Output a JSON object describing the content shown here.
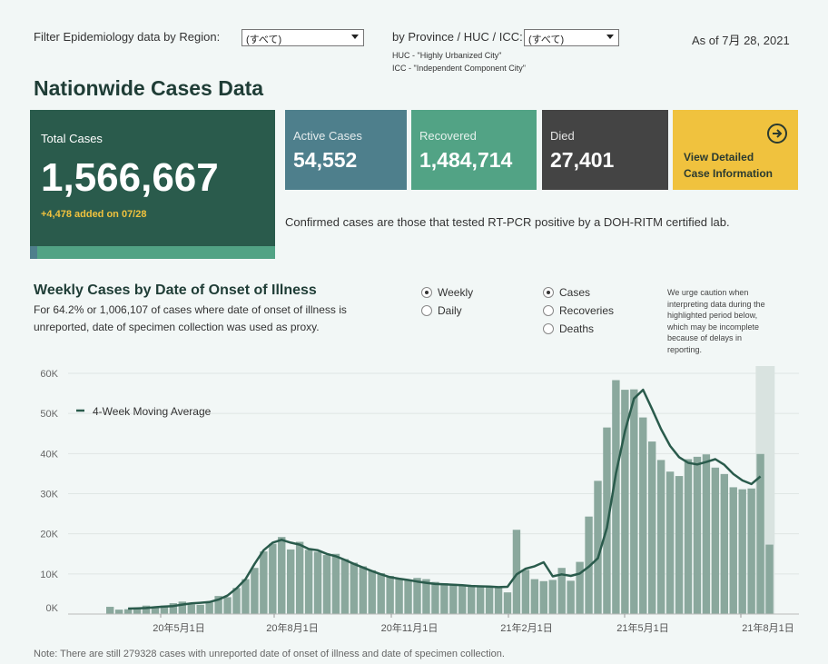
{
  "filters": {
    "region_label": "Filter Epidemiology data by Region:",
    "region_value": "(すべて)",
    "province_label": "by Province / HUC / ICC:",
    "province_value": "(すべて)",
    "huc_note": "HUC - \"Highly Urbanized City\"",
    "icc_note": "ICC - \"Independent Component City\"",
    "as_of": "As of 7月 28, 2021"
  },
  "title": "Nationwide Cases Data",
  "cards": {
    "total": {
      "label": "Total Cases",
      "value": "1,566,667",
      "added": "+4,478 added on 07/28",
      "color": "#2a5b4c"
    },
    "active": {
      "label": "Active Cases",
      "value": "54,552",
      "color": "#4e7f8c"
    },
    "recovered": {
      "label": "Recovered",
      "value": "1,484,714",
      "color": "#52a385"
    },
    "died": {
      "label": "Died",
      "value": "27,401",
      "color": "#444444"
    },
    "detail": {
      "line1": "View Detailed",
      "line2": "Case Information",
      "color": "#f0c23e"
    }
  },
  "confirmed_note": "Confirmed cases are those that tested RT-PCR positive by a DOH-RITM certified lab.",
  "weekly": {
    "title": "Weekly Cases by Date of Onset of Illness",
    "subtitle1": "For 64.2% or 1,006,107 of cases where date of onset of illness is",
    "subtitle2": "unreported, date of specimen collection was used as proxy.",
    "freq_options": [
      {
        "label": "Weekly",
        "selected": true
      },
      {
        "label": "Daily",
        "selected": false
      }
    ],
    "metric_options": [
      {
        "label": "Cases",
        "selected": true
      },
      {
        "label": "Recoveries",
        "selected": false
      },
      {
        "label": "Deaths",
        "selected": false
      }
    ],
    "caution": [
      "We urge caution when",
      "interpreting data during the",
      "highlighted period below,",
      "which may be incomplete",
      "because of delays in",
      "reporting."
    ]
  },
  "footnote": "Note: There are still 279328 cases with unreported date of onset of illness and date of specimen collection.",
  "chart_data": {
    "type": "bar",
    "legend": "4-Week Moving Average",
    "y_ticks": [
      "0K",
      "10K",
      "20K",
      "30K",
      "40K",
      "50K",
      "60K"
    ],
    "ylim": [
      0,
      62000
    ],
    "x_ticks": [
      "20年5月1日",
      "20年8月1日",
      "20年11月1日",
      "21年2月1日",
      "21年5月1日",
      "21年8月1日"
    ],
    "bar_color": "#8aa89d",
    "line_color": "#2a5b4c",
    "highlight_color": "#d9e3e0",
    "series": [
      {
        "name": "Cases",
        "values": [
          1800,
          1100,
          1200,
          1300,
          2100,
          1700,
          2100,
          2700,
          3100,
          2400,
          2300,
          2900,
          4500,
          4200,
          6500,
          8700,
          11500,
          15600,
          17500,
          19200,
          16100,
          18000,
          16000,
          15500,
          14700,
          15000,
          13700,
          12800,
          11900,
          10900,
          10200,
          9500,
          8800,
          8600,
          9000,
          8700,
          8000,
          7700,
          7500,
          7200,
          6900,
          6800,
          6700,
          6600,
          5400,
          21000,
          11000,
          8700,
          8200,
          8500,
          11500,
          8300,
          13000,
          24300,
          33200,
          46500,
          58300,
          55900,
          56000,
          49000,
          43000,
          38400,
          35500,
          34400,
          38600,
          39200,
          39800,
          36500,
          34900,
          31600,
          31100,
          31300,
          39900,
          17300
        ]
      },
      {
        "name": "4-Week Moving Average",
        "values": [
          null,
          null,
          1350,
          1400,
          1500,
          1700,
          1850,
          2000,
          2350,
          2650,
          2800,
          3000,
          3600,
          4600,
          6400,
          8700,
          12500,
          15900,
          17800,
          18500,
          17800,
          17300,
          16200,
          15900,
          15000,
          14400,
          13500,
          12500,
          11600,
          10700,
          9900,
          9200,
          8800,
          8500,
          8100,
          7800,
          7500,
          7400,
          7300,
          7200,
          7000,
          6900,
          6850,
          6700,
          6800,
          9900,
          11300,
          11900,
          12900,
          9400,
          9900,
          9500,
          10100,
          11800,
          13900,
          21500,
          35000,
          45600,
          53700,
          55900,
          51100,
          46100,
          41900,
          39100,
          37700,
          37300,
          37900,
          38600,
          37200,
          34900,
          33300,
          32400,
          34300,
          null
        ]
      }
    ]
  }
}
